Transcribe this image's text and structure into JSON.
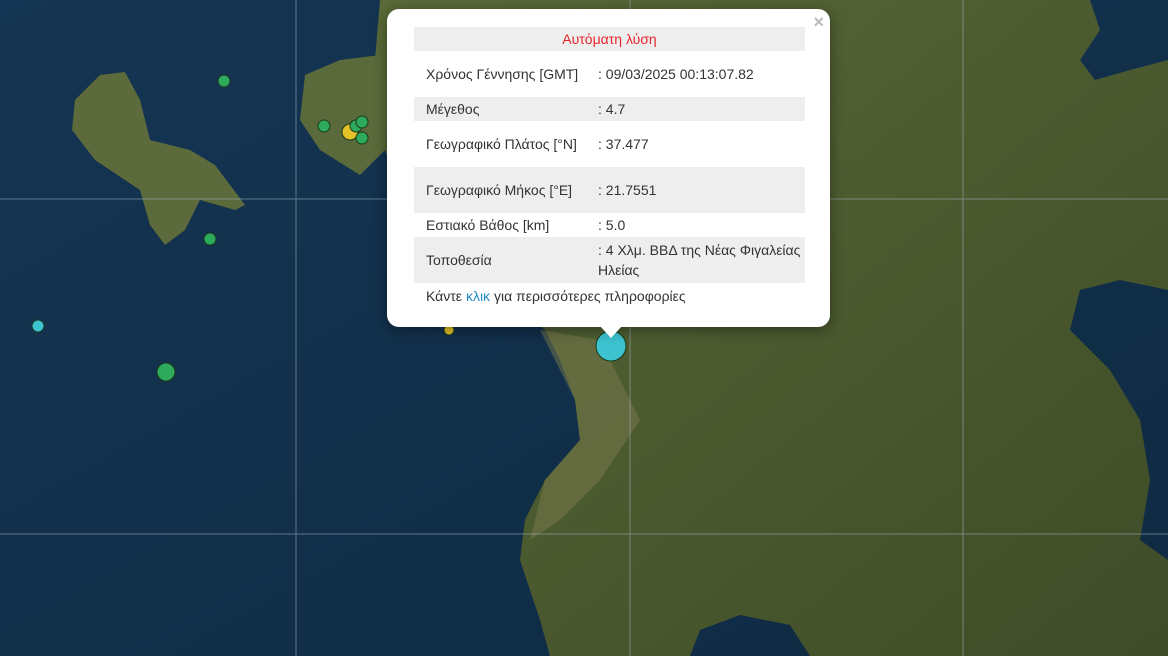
{
  "popup": {
    "title": "Αυτόματη λύση",
    "close_label": "×",
    "rows": [
      {
        "label": "Χρόνος Γέννησης [GMT]",
        "value": ": 09/03/2025 00:13:07.82"
      },
      {
        "label": "Μέγεθος",
        "value": ": 4.7"
      },
      {
        "label": "Γεωγραφικό Πλάτος [°N]",
        "value": ": 37.477"
      },
      {
        "label": "Γεωγραφικό Μήκος [°E]",
        "value": ": 21.7551"
      },
      {
        "label": "Εστιακό Βάθος [km]",
        "value": ": 5.0"
      },
      {
        "label": "Τοποθεσία",
        "value": ": 4 Χλμ. ΒΒΔ της Νέας Φιγαλείας Ηλείας"
      }
    ],
    "more_prefix": "Κάντε",
    "more_link": "κλικ",
    "more_suffix": "για περισσότερες πληροφορίες"
  },
  "colors": {
    "sea": "#12304a",
    "land": "#4a5a2e",
    "green_marker": "#2eaa5c",
    "yellow_marker": "#e6c229",
    "cyan_marker": "#3cc3cf",
    "title_red": "#e8242a",
    "link": "#1e8bc3"
  }
}
